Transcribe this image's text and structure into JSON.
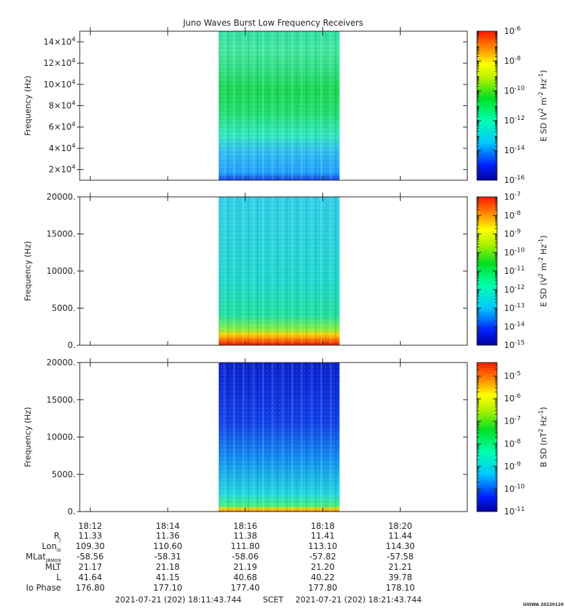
{
  "title": "Juno Waves Burst Low Frequency Receivers",
  "footer": {
    "start": "2021-07-21 (202) 18:11:43.744",
    "mid": "SCET",
    "end": "2021-07-21 (202) 18:21:43.744",
    "credit": "UIOWA 20220120"
  },
  "chart_data": [
    {
      "type": "heatmap",
      "name": "panel-1",
      "ylabel": "Frequency (Hz)",
      "ylim": [
        10000,
        150000
      ],
      "yticks": [
        {
          "label": "2×10",
          "sup": "4"
        },
        {
          "label": "4×10",
          "sup": "4"
        },
        {
          "label": "6×10",
          "sup": "4"
        },
        {
          "label": "8×10",
          "sup": "4"
        },
        {
          "label": "10×10",
          "sup": "4"
        },
        {
          "label": "12×10",
          "sup": "4"
        },
        {
          "label": "14×10",
          "sup": "4"
        }
      ],
      "colorbar": {
        "label": "E SD (V",
        "label_parts": [
          "E SD (V",
          "2",
          " m",
          "-2",
          " Hz",
          "-1",
          ")"
        ],
        "range_exp": [
          -16,
          -6
        ],
        "ticks": [
          {
            "base": "10",
            "exp": "-6"
          },
          {
            "base": "10",
            "exp": "-8"
          },
          {
            "base": "10",
            "exp": "-10"
          },
          {
            "base": "10",
            "exp": "-12"
          },
          {
            "base": "10",
            "exp": "-14"
          },
          {
            "base": "10",
            "exp": "-16"
          }
        ]
      }
    },
    {
      "type": "heatmap",
      "name": "panel-2",
      "ylabel": "Frequency (Hz)",
      "ylim": [
        0,
        20000
      ],
      "yticks": [
        {
          "label": "0."
        },
        {
          "label": "5000."
        },
        {
          "label": "10000."
        },
        {
          "label": "15000."
        },
        {
          "label": "20000."
        }
      ],
      "colorbar": {
        "label_parts": [
          "E SD (V",
          "2",
          " m",
          "-2",
          " Hz",
          "-1",
          ")"
        ],
        "range_exp": [
          -15,
          -7
        ],
        "ticks": [
          {
            "base": "10",
            "exp": "-7"
          },
          {
            "base": "10",
            "exp": "-8"
          },
          {
            "base": "10",
            "exp": "-9"
          },
          {
            "base": "10",
            "exp": "-10"
          },
          {
            "base": "10",
            "exp": "-11"
          },
          {
            "base": "10",
            "exp": "-12"
          },
          {
            "base": "10",
            "exp": "-13"
          },
          {
            "base": "10",
            "exp": "-14"
          },
          {
            "base": "10",
            "exp": "-15"
          }
        ]
      }
    },
    {
      "type": "heatmap",
      "name": "panel-3",
      "ylabel": "Frequency (Hz)",
      "ylim": [
        0,
        20000
      ],
      "yticks": [
        {
          "label": "0."
        },
        {
          "label": "5000."
        },
        {
          "label": "10000."
        },
        {
          "label": "15000."
        },
        {
          "label": "20000."
        }
      ],
      "colorbar": {
        "label_parts": [
          "B SD (nT",
          "2",
          " Hz",
          "-1",
          ")"
        ],
        "range_exp": [
          -11,
          -4.4
        ],
        "ticks": [
          {
            "base": "10",
            "exp": "-5"
          },
          {
            "base": "10",
            "exp": "-6"
          },
          {
            "base": "10",
            "exp": "-7"
          },
          {
            "base": "10",
            "exp": "-8"
          },
          {
            "base": "10",
            "exp": "-9"
          },
          {
            "base": "10",
            "exp": "-10"
          },
          {
            "base": "10",
            "exp": "-11"
          }
        ]
      }
    }
  ],
  "time_axis": {
    "x_range": [
      "18:11:43.744",
      "18:21:43.744"
    ],
    "data_span": [
      "18:15:19",
      "18:18:26"
    ],
    "ticks": [
      "18:12",
      "18:14",
      "18:16",
      "18:18",
      "18:20"
    ]
  },
  "ephemeris": [
    {
      "label": "R",
      "sub": "J",
      "values": [
        "11.33",
        "11.36",
        "11.38",
        "11.41",
        "11.44"
      ]
    },
    {
      "label": "Lon",
      "sub": "III",
      "values": [
        "109.30",
        "110.60",
        "111.80",
        "113.10",
        "114.30"
      ]
    },
    {
      "label": "MLat",
      "sub": "JRM09",
      "values": [
        "-58.56",
        "-58.31",
        "-58.06",
        "-57.82",
        "-57.58"
      ]
    },
    {
      "label": "MLT",
      "sub": "",
      "values": [
        "21.17",
        "21.18",
        "21.19",
        "21.20",
        "21.21"
      ]
    },
    {
      "label": "L",
      "sub": "",
      "values": [
        "41.64",
        "41.15",
        "40.68",
        "40.22",
        "39.78"
      ]
    },
    {
      "label": "Io Phase",
      "sub": "",
      "values": [
        "176.80",
        "177.10",
        "177.40",
        "177.80",
        "178.10"
      ]
    }
  ]
}
